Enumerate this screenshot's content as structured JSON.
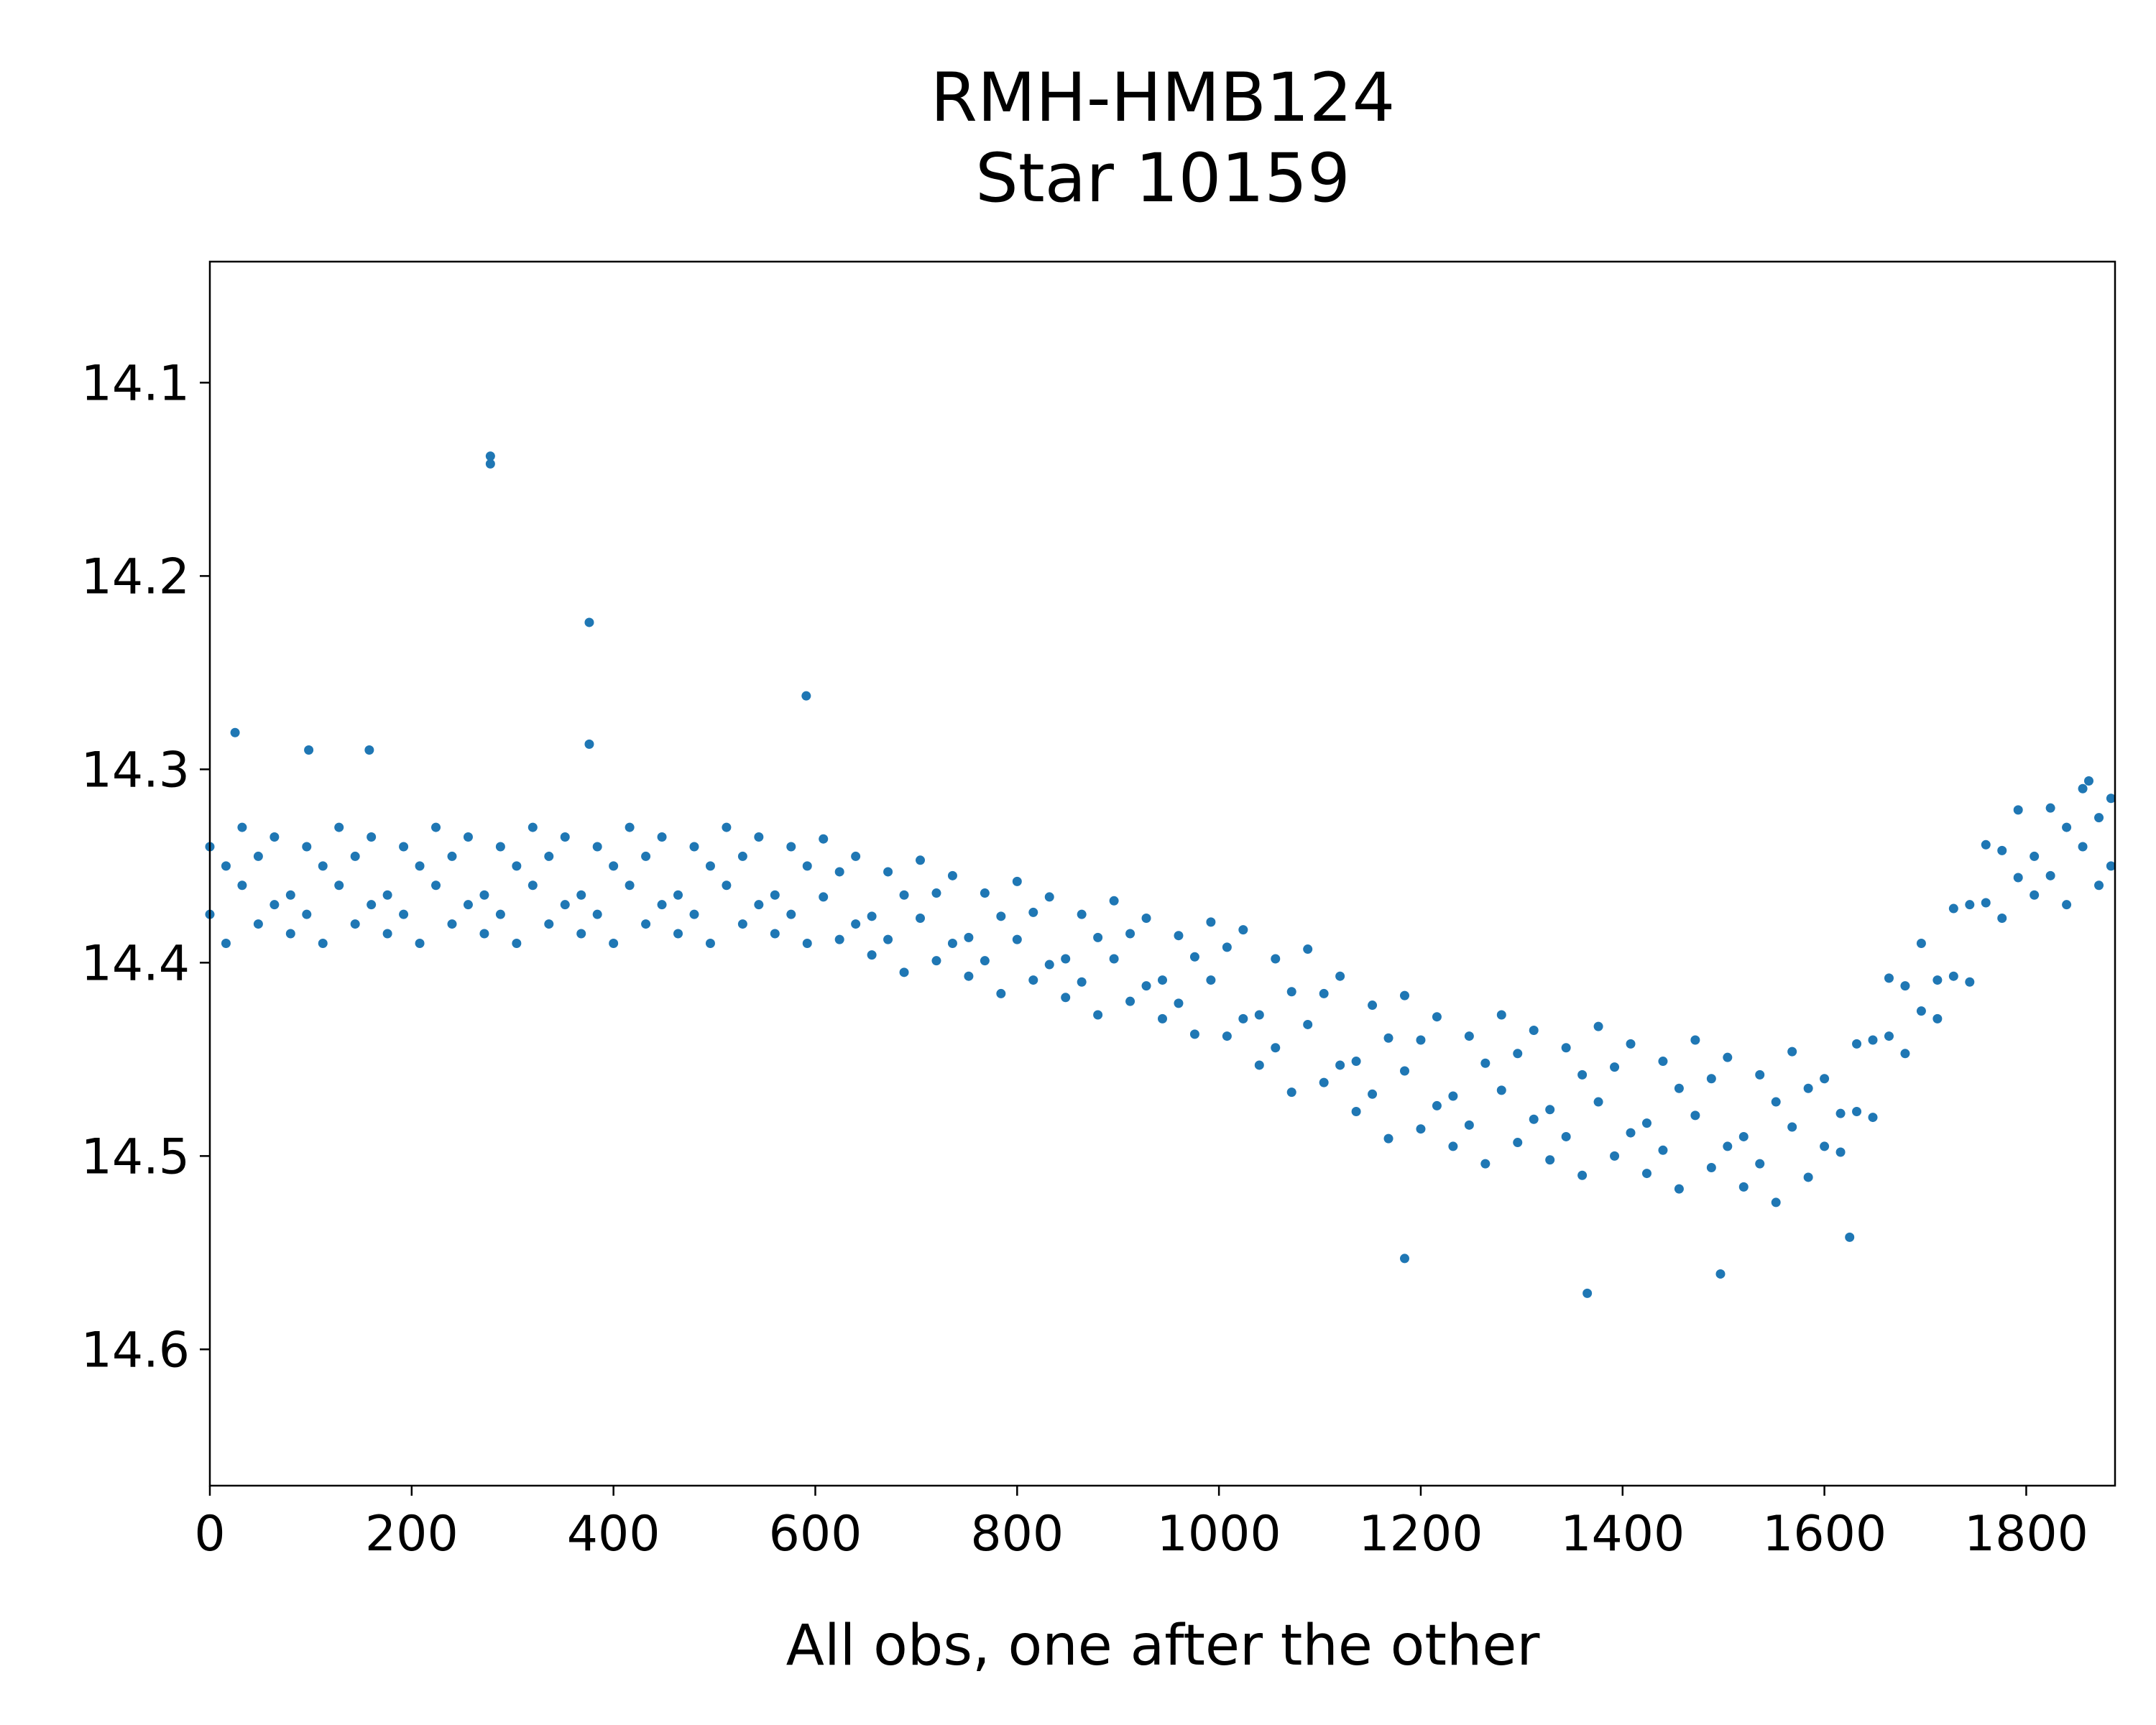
{
  "chart_data": {
    "type": "scatter",
    "title": [
      "RMH-HMB124",
      "Star 10159"
    ],
    "xlabel": "All obs, one after the other",
    "ylabel": "",
    "xlim": [
      0,
      1888
    ],
    "ylim": [
      14.6705,
      14.0374
    ],
    "y_inverted": true,
    "grid": false,
    "xticks": [
      0,
      200,
      400,
      600,
      800,
      1000,
      1200,
      1400,
      1600,
      1800
    ],
    "xtick_labels": [
      "0",
      "200",
      "400",
      "600",
      "800",
      "1000",
      "1200",
      "1400",
      "1600",
      "1800"
    ],
    "yticks": [
      14.1,
      14.2,
      14.3,
      14.4,
      14.5,
      14.6
    ],
    "ytick_labels": [
      "14.1",
      "14.2",
      "14.3",
      "14.4",
      "14.5",
      "14.6"
    ],
    "marker_color": "#1f77b4",
    "note": "representative subsample of the ~1890 plotted observations",
    "points": [
      [
        0,
        14.34
      ],
      [
        0,
        14.375
      ],
      [
        16,
        14.39
      ],
      [
        16,
        14.35
      ],
      [
        32,
        14.36
      ],
      [
        32,
        14.33
      ],
      [
        48,
        14.38
      ],
      [
        48,
        14.345
      ],
      [
        64,
        14.335
      ],
      [
        64,
        14.37
      ],
      [
        80,
        14.365
      ],
      [
        80,
        14.385
      ],
      [
        96,
        14.34
      ],
      [
        96,
        14.375
      ],
      [
        112,
        14.39
      ],
      [
        112,
        14.35
      ],
      [
        128,
        14.36
      ],
      [
        128,
        14.33
      ],
      [
        144,
        14.38
      ],
      [
        144,
        14.345
      ],
      [
        160,
        14.335
      ],
      [
        160,
        14.37
      ],
      [
        176,
        14.365
      ],
      [
        176,
        14.385
      ],
      [
        192,
        14.34
      ],
      [
        192,
        14.375
      ],
      [
        208,
        14.39
      ],
      [
        208,
        14.35
      ],
      [
        224,
        14.36
      ],
      [
        224,
        14.33
      ],
      [
        240,
        14.38
      ],
      [
        240,
        14.345
      ],
      [
        256,
        14.335
      ],
      [
        256,
        14.37
      ],
      [
        272,
        14.365
      ],
      [
        272,
        14.385
      ],
      [
        288,
        14.34
      ],
      [
        288,
        14.375
      ],
      [
        304,
        14.39
      ],
      [
        304,
        14.35
      ],
      [
        320,
        14.36
      ],
      [
        320,
        14.33
      ],
      [
        336,
        14.38
      ],
      [
        336,
        14.345
      ],
      [
        352,
        14.335
      ],
      [
        352,
        14.37
      ],
      [
        368,
        14.365
      ],
      [
        368,
        14.385
      ],
      [
        384,
        14.34
      ],
      [
        384,
        14.375
      ],
      [
        400,
        14.39
      ],
      [
        400,
        14.35
      ],
      [
        416,
        14.36
      ],
      [
        416,
        14.33
      ],
      [
        432,
        14.38
      ],
      [
        432,
        14.345
      ],
      [
        448,
        14.335
      ],
      [
        448,
        14.37
      ],
      [
        464,
        14.365
      ],
      [
        464,
        14.385
      ],
      [
        480,
        14.34
      ],
      [
        480,
        14.375
      ],
      [
        496,
        14.39
      ],
      [
        496,
        14.35
      ],
      [
        512,
        14.36
      ],
      [
        512,
        14.33
      ],
      [
        528,
        14.38
      ],
      [
        528,
        14.345
      ],
      [
        544,
        14.335
      ],
      [
        544,
        14.37
      ],
      [
        560,
        14.365
      ],
      [
        560,
        14.385
      ],
      [
        576,
        14.34
      ],
      [
        576,
        14.375
      ],
      [
        592,
        14.39
      ],
      [
        592,
        14.35
      ],
      [
        608,
        14.366
      ],
      [
        608,
        14.336
      ],
      [
        624,
        14.388
      ],
      [
        624,
        14.353
      ],
      [
        640,
        14.345
      ],
      [
        640,
        14.38
      ],
      [
        656,
        14.376
      ],
      [
        656,
        14.396
      ],
      [
        672,
        14.353
      ],
      [
        672,
        14.388
      ],
      [
        688,
        14.405
      ],
      [
        688,
        14.365
      ],
      [
        704,
        14.377
      ],
      [
        704,
        14.347
      ],
      [
        720,
        14.399
      ],
      [
        720,
        14.364
      ],
      [
        736,
        14.355
      ],
      [
        736,
        14.39
      ],
      [
        752,
        14.387
      ],
      [
        752,
        14.407
      ],
      [
        768,
        14.364
      ],
      [
        768,
        14.399
      ],
      [
        784,
        14.416
      ],
      [
        784,
        14.376
      ],
      [
        800,
        14.388
      ],
      [
        800,
        14.358
      ],
      [
        816,
        14.409
      ],
      [
        816,
        14.374
      ],
      [
        832,
        14.366
      ],
      [
        832,
        14.401
      ],
      [
        848,
        14.398
      ],
      [
        848,
        14.418
      ],
      [
        864,
        14.375
      ],
      [
        864,
        14.41
      ],
      [
        880,
        14.427
      ],
      [
        880,
        14.387
      ],
      [
        896,
        14.398
      ],
      [
        896,
        14.368
      ],
      [
        912,
        14.42
      ],
      [
        912,
        14.385
      ],
      [
        928,
        14.377
      ],
      [
        928,
        14.412
      ],
      [
        944,
        14.409
      ],
      [
        944,
        14.429
      ],
      [
        960,
        14.386
      ],
      [
        960,
        14.421
      ],
      [
        976,
        14.437
      ],
      [
        976,
        14.397
      ],
      [
        992,
        14.409
      ],
      [
        992,
        14.379
      ],
      [
        1008,
        14.438
      ],
      [
        1008,
        14.392
      ],
      [
        1024,
        14.383
      ],
      [
        1024,
        14.429
      ],
      [
        1040,
        14.427
      ],
      [
        1040,
        14.453
      ],
      [
        1056,
        14.398
      ],
      [
        1056,
        14.444
      ],
      [
        1072,
        14.467
      ],
      [
        1072,
        14.415
      ],
      [
        1088,
        14.432
      ],
      [
        1088,
        14.393
      ],
      [
        1104,
        14.462
      ],
      [
        1104,
        14.416
      ],
      [
        1120,
        14.407
      ],
      [
        1120,
        14.453
      ],
      [
        1136,
        14.451
      ],
      [
        1136,
        14.477
      ],
      [
        1152,
        14.422
      ],
      [
        1152,
        14.468
      ],
      [
        1168,
        14.491
      ],
      [
        1168,
        14.439
      ],
      [
        1184,
        14.456
      ],
      [
        1184,
        14.417
      ],
      [
        1200,
        14.486
      ],
      [
        1200,
        14.44
      ],
      [
        1216,
        14.428
      ],
      [
        1216,
        14.474
      ],
      [
        1232,
        14.469
      ],
      [
        1232,
        14.495
      ],
      [
        1248,
        14.438
      ],
      [
        1248,
        14.484
      ],
      [
        1264,
        14.504
      ],
      [
        1264,
        14.452
      ],
      [
        1280,
        14.466
      ],
      [
        1280,
        14.427
      ],
      [
        1296,
        14.493
      ],
      [
        1296,
        14.447
      ],
      [
        1312,
        14.435
      ],
      [
        1312,
        14.481
      ],
      [
        1328,
        14.476
      ],
      [
        1328,
        14.502
      ],
      [
        1344,
        14.444
      ],
      [
        1344,
        14.49
      ],
      [
        1360,
        14.51
      ],
      [
        1360,
        14.458
      ],
      [
        1376,
        14.472
      ],
      [
        1376,
        14.433
      ],
      [
        1392,
        14.5
      ],
      [
        1392,
        14.454
      ],
      [
        1408,
        14.442
      ],
      [
        1408,
        14.488
      ],
      [
        1424,
        14.483
      ],
      [
        1424,
        14.509
      ],
      [
        1440,
        14.451
      ],
      [
        1440,
        14.497
      ],
      [
        1456,
        14.517
      ],
      [
        1456,
        14.465
      ],
      [
        1472,
        14.479
      ],
      [
        1472,
        14.44
      ],
      [
        1488,
        14.506
      ],
      [
        1488,
        14.46
      ],
      [
        1504,
        14.449
      ],
      [
        1504,
        14.495
      ],
      [
        1520,
        14.49
      ],
      [
        1520,
        14.516
      ],
      [
        1536,
        14.458
      ],
      [
        1536,
        14.504
      ],
      [
        1552,
        14.524
      ],
      [
        1552,
        14.472
      ],
      [
        1568,
        14.485
      ],
      [
        1568,
        14.446
      ],
      [
        1584,
        14.511
      ],
      [
        1584,
        14.465
      ],
      [
        1600,
        14.46
      ],
      [
        1600,
        14.495
      ],
      [
        1616,
        14.478
      ],
      [
        1616,
        14.498
      ],
      [
        1632,
        14.442
      ],
      [
        1632,
        14.477
      ],
      [
        1648,
        14.48
      ],
      [
        1648,
        14.44
      ],
      [
        1664,
        14.438
      ],
      [
        1664,
        14.408
      ],
      [
        1680,
        14.447
      ],
      [
        1680,
        14.412
      ],
      [
        1696,
        14.39
      ],
      [
        1696,
        14.425
      ],
      [
        1712,
        14.409
      ],
      [
        1712,
        14.429
      ],
      [
        1728,
        14.372
      ],
      [
        1728,
        14.407
      ],
      [
        1744,
        14.41
      ],
      [
        1744,
        14.37
      ],
      [
        1760,
        14.369
      ],
      [
        1760,
        14.339
      ],
      [
        1776,
        14.377
      ],
      [
        1776,
        14.342
      ],
      [
        1792,
        14.321
      ],
      [
        1792,
        14.356
      ],
      [
        1808,
        14.345
      ],
      [
        1808,
        14.365
      ],
      [
        1824,
        14.32
      ],
      [
        1824,
        14.355
      ],
      [
        1840,
        14.37
      ],
      [
        1840,
        14.33
      ],
      [
        1856,
        14.34
      ],
      [
        1856,
        14.31
      ],
      [
        1872,
        14.36
      ],
      [
        1872,
        14.325
      ],
      [
        1884,
        14.315
      ],
      [
        1884,
        14.35
      ],
      [
        278,
        14.142
      ],
      [
        278,
        14.138
      ],
      [
        376,
        14.224
      ],
      [
        591,
        14.262
      ],
      [
        25,
        14.281
      ],
      [
        98,
        14.29
      ],
      [
        158,
        14.29
      ],
      [
        376,
        14.287
      ],
      [
        1365,
        14.571
      ],
      [
        1184,
        14.553
      ],
      [
        1497,
        14.561
      ],
      [
        1625,
        14.542
      ],
      [
        1862,
        14.306
      ]
    ]
  }
}
